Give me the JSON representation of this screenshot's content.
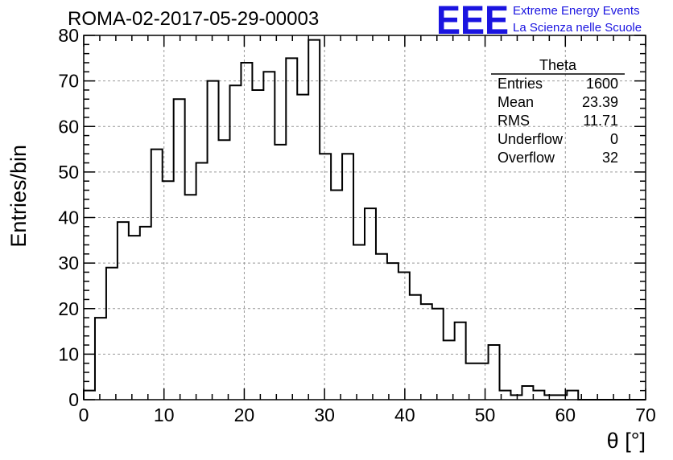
{
  "chart_data": {
    "type": "bar",
    "title": "ROMA-02-2017-05-29-00003",
    "xlabel": "θ [°]",
    "ylabel": "Entries/bin",
    "xlim": [
      0,
      70
    ],
    "ylim": [
      0,
      80
    ],
    "x_ticks": [
      0,
      10,
      20,
      30,
      40,
      50,
      60,
      70
    ],
    "y_ticks": [
      0,
      10,
      20,
      30,
      40,
      50,
      60,
      70,
      80
    ],
    "grid": true,
    "bin_width": 1.4,
    "x_start": 0,
    "values": [
      2,
      18,
      29,
      39,
      36,
      38,
      55,
      48,
      66,
      45,
      52,
      70,
      57,
      69,
      74,
      68,
      72,
      56,
      75,
      67,
      79,
      54,
      46,
      54,
      34,
      42,
      32,
      30,
      28,
      23,
      21,
      20,
      13,
      17,
      8,
      8,
      12,
      2,
      1,
      3,
      2,
      1,
      1,
      2,
      0,
      0,
      0,
      0,
      0,
      0
    ],
    "stats": {
      "name": "Theta",
      "rows": [
        {
          "label": "Entries",
          "value": "1600"
        },
        {
          "label": "Mean",
          "value": "23.39"
        },
        {
          "label": "RMS",
          "value": "11.71"
        },
        {
          "label": "Underflow",
          "value": "0"
        },
        {
          "label": "Overflow",
          "value": "32"
        }
      ]
    }
  },
  "logo": {
    "mark": "EEE",
    "line1": "Extreme Energy Events",
    "line2": "La Scienza nelle Scuole",
    "color": "#1a14e0"
  }
}
